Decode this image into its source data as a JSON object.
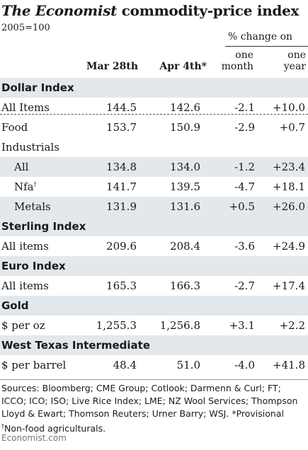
{
  "title": {
    "brand": "The Economist",
    "rest": " commodity-price index"
  },
  "subtitle": "2005=100",
  "headers": {
    "pct_change": "% change on",
    "col1": "Mar 28th",
    "col2": "Apr 4th*",
    "col3_line1": "one",
    "col3_line2": "month",
    "col4_line1": "one",
    "col4_line2": "year"
  },
  "rows": [
    {
      "type": "section",
      "label": "Dollar Index"
    },
    {
      "type": "data",
      "indent": 0,
      "label": "All Items",
      "mar": "144.5",
      "apr": "142.6",
      "month": "-2.1",
      "year": "+10.0",
      "dashed": true
    },
    {
      "type": "data",
      "indent": 0,
      "label": "Food",
      "mar": "153.7",
      "apr": "150.9",
      "month": "-2.9",
      "year": "+0.7"
    },
    {
      "type": "subsection",
      "label": "Industrials"
    },
    {
      "type": "data",
      "indent": 1,
      "label": "All",
      "mar": "134.8",
      "apr": "134.0",
      "month": "-1.2",
      "year": "+23.4"
    },
    {
      "type": "data",
      "indent": 1,
      "label": "Nfa",
      "sup": "†",
      "mar": "141.7",
      "apr": "139.5",
      "month": "-4.7",
      "year": "+18.1"
    },
    {
      "type": "data",
      "indent": 1,
      "label": "Metals",
      "mar": "131.9",
      "apr": "131.6",
      "month": "+0.5",
      "year": "+26.0"
    },
    {
      "type": "section",
      "label": "Sterling Index"
    },
    {
      "type": "data",
      "indent": 0,
      "label": "All items",
      "mar": "209.6",
      "apr": "208.4",
      "month": "-3.6",
      "year": "+24.9"
    },
    {
      "type": "section",
      "label": "Euro Index"
    },
    {
      "type": "data",
      "indent": 0,
      "label": "All items",
      "mar": "165.3",
      "apr": "166.3",
      "month": "-2.7",
      "year": "+17.4"
    },
    {
      "type": "section",
      "label": "Gold"
    },
    {
      "type": "data",
      "indent": 0,
      "label": "$ per oz",
      "mar": "1,255.3",
      "apr": "1,256.8",
      "month": "+3.1",
      "year": "+2.2"
    },
    {
      "type": "section",
      "label": "West Texas Intermediate"
    },
    {
      "type": "data",
      "indent": 0,
      "label": "$ per barrel",
      "mar": "48.4",
      "apr": "51.0",
      "month": "-4.0",
      "year": "+41.8"
    }
  ],
  "sources": "Sources: Bloomberg; CME Group; Cotlook; Darmenn & Curl; FT; ICCO; ICO; ISO; Live Rice Index; LME; NZ Wool Services; Thompson Lloyd & Ewart; Thomson Reuters; Urner Barry; WSJ.  *Provisional",
  "footnote_mark": "†",
  "footnote": "Non-food agriculturals.",
  "footer": "Economist.com",
  "colors": {
    "band": "#e2e8ec",
    "text": "#1a1a1a",
    "footer": "#777777"
  }
}
